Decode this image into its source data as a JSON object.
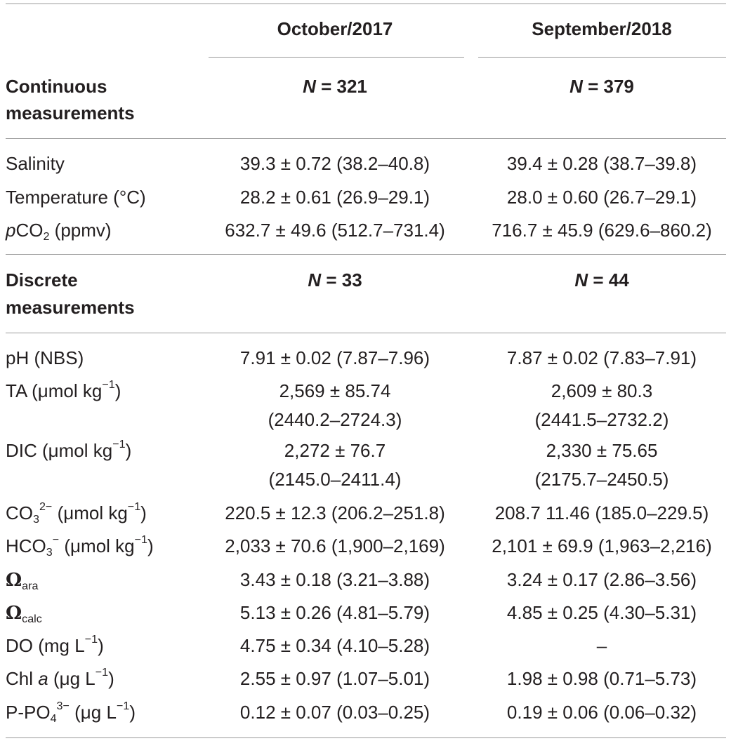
{
  "header": {
    "col1": "October/2017",
    "col2": "September/2018"
  },
  "sections": [
    {
      "title_line1": "Continuous",
      "title_line2": "measurements",
      "n_label": "N",
      "n1": "= 321",
      "n2": "= 379",
      "rows": [
        {
          "label": "Salinity",
          "v1": "39.3 ± 0.72 (38.2–40.8)",
          "v2": "39.4 ± 0.28 (38.7–39.8)"
        },
        {
          "label": "Temperature (°C)",
          "v1": "28.2 ± 0.61 (26.9–29.1)",
          "v2": "28.0 ± 0.60 (26.7–29.1)"
        },
        {
          "label_prefix": "p",
          "label_main": "CO",
          "label_sub": "2",
          "label_suffix": " (ppmv)",
          "v1": "632.7 ± 49.6 (512.7–731.4)",
          "v2": "716.7 ± 45.9 (629.6–860.2)"
        }
      ]
    },
    {
      "title_line1": "Discrete",
      "title_line2": "measurements",
      "n_label": "N",
      "n1": "= 33",
      "n2": "= 44",
      "rows": [
        {
          "label": "pH (NBS)",
          "v1": "7.91 ± 0.02 (7.87–7.96)",
          "v2": "7.87 ± 0.02 (7.83–7.91)"
        },
        {
          "label_main": "TA (μmol kg",
          "label_sup": "−1",
          "label_suffix": ")",
          "v1_line1": "2,569 ± 85.74",
          "v1_line2": "(2440.2–2724.3)",
          "v2_line1": "2,609 ± 80.3",
          "v2_line2": "(2441.5–2732.2)"
        },
        {
          "label_main": "DIC (μmol kg",
          "label_sup": "−1",
          "label_suffix": ")",
          "v1_line1": "2,272 ± 76.7",
          "v1_line2": "(2145.0–2411.4)",
          "v2_line1": "2,330 ± 75.65",
          "v2_line2": "(2175.7–2450.5)"
        },
        {
          "label_main": "CO",
          "label_sub": "3",
          "label_sup": "2−",
          "label_suffix": " (μmol kg",
          "label_sup2": "−1",
          "label_suffix2": ")",
          "v1": "220.5 ± 12.3 (206.2–251.8)",
          "v2": "208.7 11.46 (185.0–229.5)"
        },
        {
          "label_main": "HCO",
          "label_sub": "3",
          "label_sup": "−",
          "label_suffix": " (μmol kg",
          "label_sup2": "−1",
          "label_suffix2": ")",
          "v1": "2,033 ± 70.6 (1,900–2,169)",
          "v2": "2,101 ± 69.9 (1,963–2,216)"
        },
        {
          "label_main": "Ω",
          "label_sub": "ara",
          "v1": "3.43 ± 0.18 (3.21–3.88)",
          "v2": "3.24 ± 0.17 (2.86–3.56)"
        },
        {
          "label_main": "Ω",
          "label_sub": "calc",
          "v1": "5.13 ± 0.26 (4.81–5.79)",
          "v2": "4.85 ± 0.25 (4.30–5.31)"
        },
        {
          "label_main": "DO (mg L",
          "label_sup": "−1",
          "label_suffix": ")",
          "v1": "4.75 ± 0.34 (4.10–5.28)",
          "v2": "–"
        },
        {
          "label_main": "Chl ",
          "label_italic": "a",
          "label_mid": " (μg L",
          "label_sup": "−1",
          "label_suffix": ")",
          "v1": "2.55 ± 0.97 (1.07–5.01)",
          "v2": "1.98 ± 0.98 (0.71–5.73)"
        },
        {
          "label_main": "P-PO",
          "label_sub": "4",
          "label_sup": "3−",
          "label_suffix": " (μg L",
          "label_sup2": "−1",
          "label_suffix2": ")",
          "v1": "0.12 ± 0.07 (0.03–0.25)",
          "v2": "0.19 ± 0.06 (0.06–0.32)"
        }
      ]
    }
  ]
}
